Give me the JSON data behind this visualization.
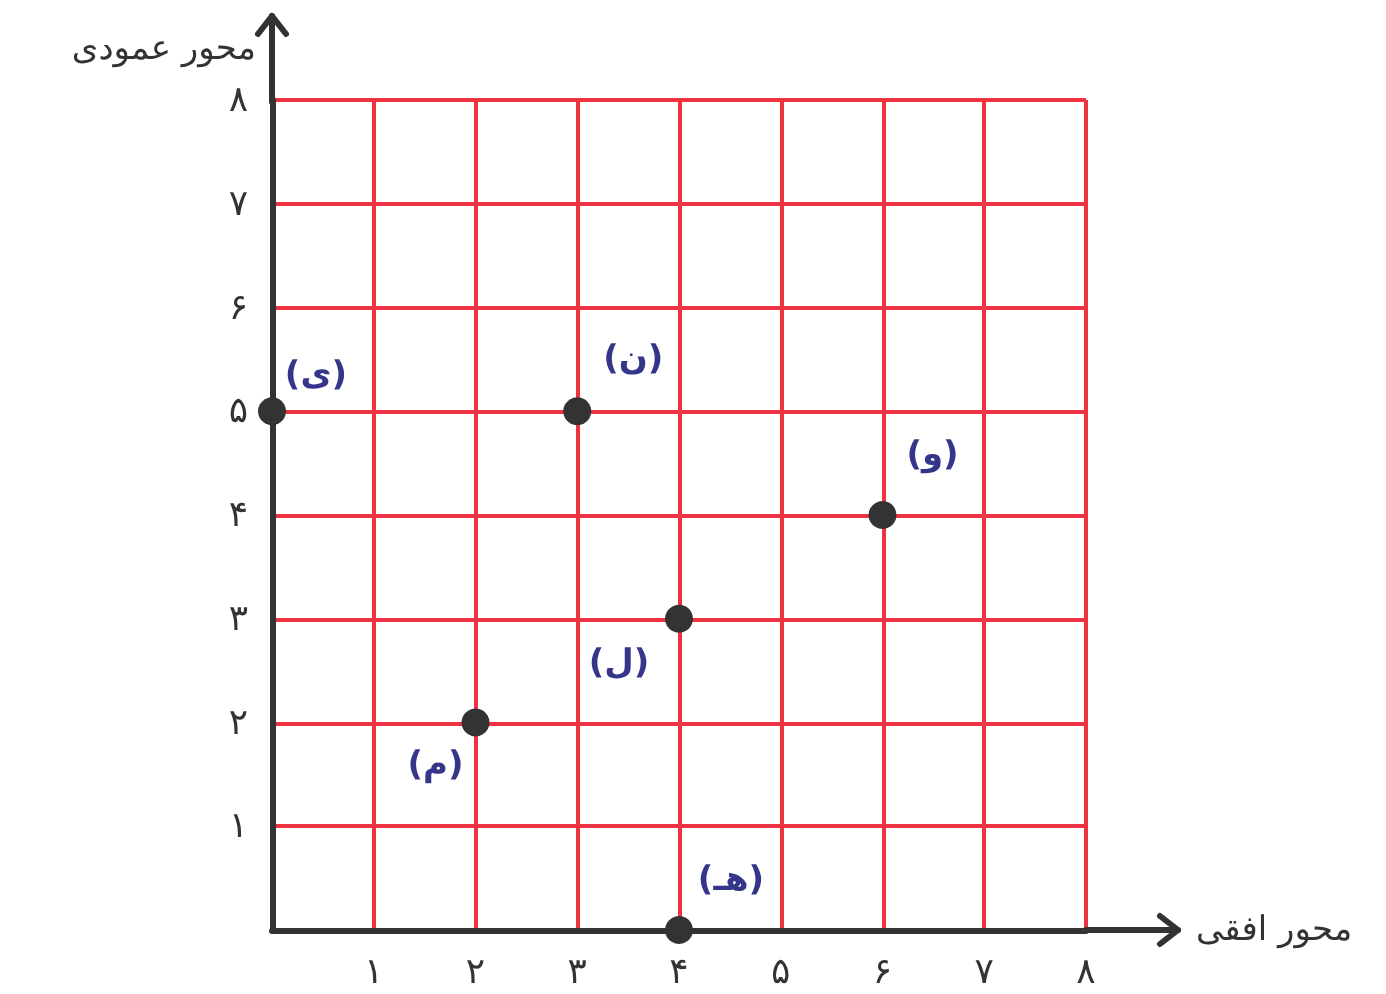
{
  "chart_data": {
    "type": "scatter",
    "xlabel": "محور افقی",
    "ylabel": "محور عمودی",
    "x": [
      0,
      3,
      6,
      4,
      2,
      4
    ],
    "values": [
      5,
      5,
      4,
      3,
      2,
      0
    ],
    "color": "#333333",
    "marker": "circle",
    "xlim": [
      0,
      8
    ],
    "ylim": [
      0,
      8
    ],
    "xticks": [
      {
        "value": 1,
        "label": "۱"
      },
      {
        "value": 2,
        "label": "۲"
      },
      {
        "value": 3,
        "label": "۳"
      },
      {
        "value": 4,
        "label": "۴"
      },
      {
        "value": 5,
        "label": "۵"
      },
      {
        "value": 6,
        "label": "۶"
      },
      {
        "value": 7,
        "label": "۷"
      },
      {
        "value": 8,
        "label": "۸"
      }
    ],
    "yticks": [
      {
        "value": 1,
        "label": "۱"
      },
      {
        "value": 2,
        "label": "۲"
      },
      {
        "value": 3,
        "label": "۳"
      },
      {
        "value": 4,
        "label": "۴"
      },
      {
        "value": 5,
        "label": "۵"
      },
      {
        "value": 6,
        "label": "۶"
      },
      {
        "value": 7,
        "label": "۷"
      },
      {
        "value": 8,
        "label": "۸"
      }
    ],
    "grid": true,
    "annotations": [
      {
        "text": "(ی)",
        "x": 0,
        "y": 5
      },
      {
        "text": "(ن)",
        "x": 3,
        "y": 5
      },
      {
        "text": "(و)",
        "x": 6,
        "y": 4
      },
      {
        "text": "(ل)",
        "x": 4,
        "y": 3
      },
      {
        "text": "(م)",
        "x": 2,
        "y": 2
      },
      {
        "text": "(هـ)",
        "x": 4,
        "y": 0
      }
    ]
  }
}
